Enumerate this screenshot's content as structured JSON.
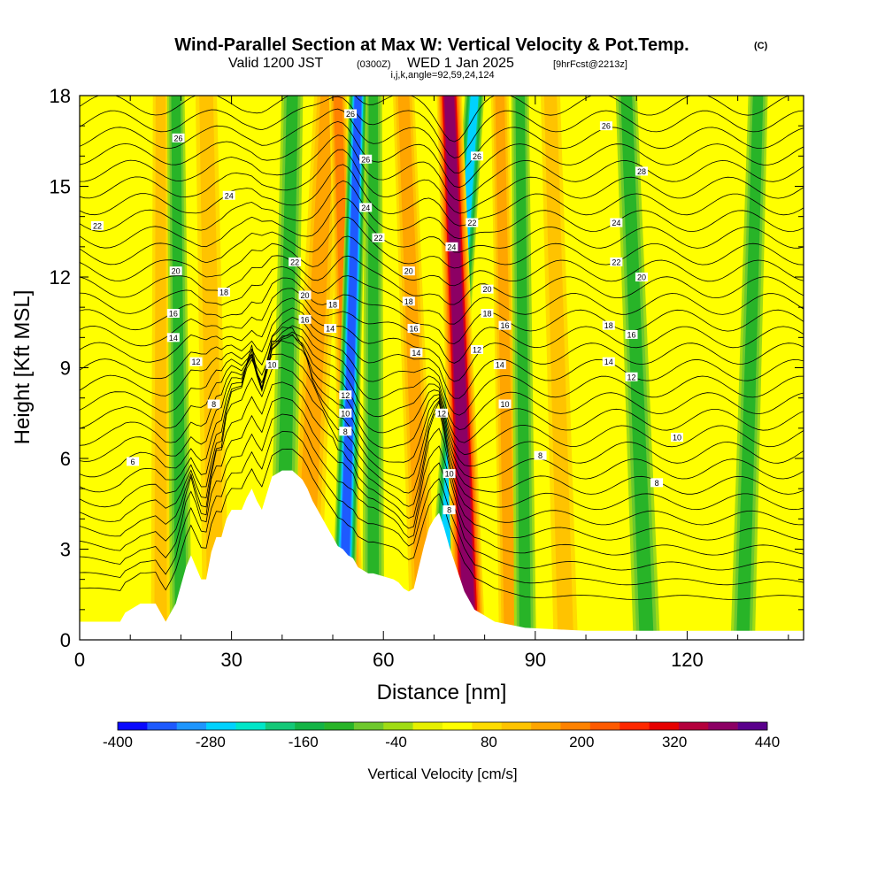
{
  "chart_data": {
    "type": "heatmap",
    "title": "Wind-Parallel Section at Max W: Vertical Velocity & Pot.Temp.",
    "title_mark": "(C)",
    "subtitle_parts": [
      "Valid 1200 JST",
      "(0300Z)",
      "WED 1 Jan 2025",
      "[9hrFcst@2213z]"
    ],
    "subtitle2": "i,j,k,angle=92,59,24,124",
    "xlabel": "Distance [nm]",
    "ylabel": "Height [Kft MSL]",
    "xlim": [
      0,
      143
    ],
    "ylim": [
      0,
      18
    ],
    "x_ticks": [
      0,
      30,
      60,
      90,
      120
    ],
    "y_ticks": [
      0,
      3,
      6,
      9,
      12,
      15,
      18
    ],
    "colorbar": {
      "label": "Vertical Velocity [cm/s]",
      "ticks": [
        -400,
        -280,
        -160,
        -40,
        80,
        200,
        320,
        440
      ],
      "min": -400,
      "max": 440,
      "colors": [
        "#0a0aff",
        "#1e5aff",
        "#1e96ff",
        "#00d2ff",
        "#00e6c8",
        "#14c878",
        "#14b446",
        "#28b428",
        "#6ec82d",
        "#a0dc14",
        "#e6f000",
        "#ffff00",
        "#ffdc00",
        "#ffc300",
        "#ffa500",
        "#ff8200",
        "#ff5a00",
        "#ff2800",
        "#e60000",
        "#b4003c",
        "#8c0064",
        "#5a008c"
      ]
    },
    "terrain_kft": [
      [
        0,
        0.6
      ],
      [
        8,
        0.6
      ],
      [
        9,
        0.9
      ],
      [
        12,
        1.2
      ],
      [
        15,
        1.2
      ],
      [
        16,
        0.9
      ],
      [
        17,
        0.6
      ],
      [
        18,
        0.9
      ],
      [
        19,
        1.2
      ],
      [
        20,
        1.8
      ],
      [
        21,
        2.4
      ],
      [
        22,
        2.8
      ],
      [
        23,
        2.4
      ],
      [
        24,
        2.0
      ],
      [
        25,
        2.0
      ],
      [
        26,
        2.9
      ],
      [
        27,
        3.4
      ],
      [
        28,
        3.4
      ],
      [
        29,
        4.0
      ],
      [
        30,
        4.3
      ],
      [
        32,
        4.3
      ],
      [
        33,
        4.7
      ],
      [
        34,
        5.0
      ],
      [
        35,
        4.6
      ],
      [
        36,
        4.3
      ],
      [
        38,
        5.4
      ],
      [
        40,
        5.6
      ],
      [
        42,
        5.6
      ],
      [
        44,
        5.3
      ],
      [
        45,
        5.0
      ],
      [
        46,
        4.6
      ],
      [
        47,
        4.3
      ],
      [
        48,
        4.0
      ],
      [
        49,
        3.7
      ],
      [
        50,
        3.4
      ],
      [
        51,
        3.1
      ],
      [
        52,
        3.0
      ],
      [
        53,
        2.8
      ],
      [
        54,
        2.7
      ],
      [
        55,
        2.4
      ],
      [
        56,
        2.3
      ],
      [
        57,
        2.2
      ],
      [
        58,
        2.2
      ],
      [
        60,
        2.1
      ],
      [
        62,
        2.0
      ],
      [
        63,
        1.9
      ],
      [
        64,
        1.7
      ],
      [
        65,
        1.6
      ],
      [
        66,
        1.7
      ],
      [
        67,
        2.4
      ],
      [
        68,
        3.1
      ],
      [
        69,
        3.7
      ],
      [
        70,
        4.0
      ],
      [
        71,
        4.2
      ],
      [
        72,
        3.7
      ],
      [
        73,
        3.1
      ],
      [
        74,
        2.6
      ],
      [
        75,
        2.1
      ],
      [
        76,
        1.6
      ],
      [
        77,
        1.3
      ],
      [
        78,
        1.0
      ],
      [
        80,
        0.8
      ],
      [
        82,
        0.6
      ],
      [
        85,
        0.5
      ],
      [
        88,
        0.4
      ],
      [
        100,
        0.3
      ],
      [
        143,
        0.3
      ]
    ],
    "updraft_bands": [
      {
        "x_bottom": 44,
        "x_top": 49,
        "width": 2.8,
        "strength": 120
      },
      {
        "x_bottom": 54,
        "x_top": 51,
        "width": 1.8,
        "strength": 160
      },
      {
        "x_bottom": 77,
        "x_top": 73,
        "width": 2.6,
        "strength": 330
      },
      {
        "x_bottom": 68,
        "x_top": 64,
        "width": 2.2,
        "strength": 120
      },
      {
        "x_bottom": 85,
        "x_top": 83,
        "width": 1.8,
        "strength": 120
      },
      {
        "x_bottom": 96,
        "x_top": 93,
        "width": 2.0,
        "strength": 90
      },
      {
        "x_bottom": 27,
        "x_top": 25,
        "width": 2.2,
        "strength": 80
      },
      {
        "x_bottom": 16,
        "x_top": 16,
        "width": 1.6,
        "strength": 70
      }
    ],
    "downdraft_bands": [
      {
        "x_bottom": 52,
        "x_top": 55,
        "width": 1.9,
        "strength": -330
      },
      {
        "x_bottom": 71,
        "x_top": 78,
        "width": 2.0,
        "strength": -250
      },
      {
        "x_bottom": 40,
        "x_top": 42,
        "width": 2.2,
        "strength": -130
      },
      {
        "x_bottom": 58,
        "x_top": 58,
        "width": 1.8,
        "strength": -120
      },
      {
        "x_bottom": 88,
        "x_top": 87,
        "width": 1.8,
        "strength": -120
      },
      {
        "x_bottom": 112,
        "x_top": 108,
        "width": 2.2,
        "strength": -110
      },
      {
        "x_bottom": 20,
        "x_top": 19,
        "width": 1.8,
        "strength": -120
      },
      {
        "x_bottom": 131,
        "x_top": 134,
        "width": 2.0,
        "strength": -120
      }
    ],
    "theta_contour_labels": [
      {
        "x": 19.5,
        "y": 16.6,
        "text": "26"
      },
      {
        "x": 29.5,
        "y": 14.7,
        "text": "24"
      },
      {
        "x": 3.5,
        "y": 13.7,
        "text": "22"
      },
      {
        "x": 19,
        "y": 12.2,
        "text": "20"
      },
      {
        "x": 28.5,
        "y": 11.5,
        "text": "18"
      },
      {
        "x": 18.5,
        "y": 10.8,
        "text": "16"
      },
      {
        "x": 18.5,
        "y": 10.0,
        "text": "14"
      },
      {
        "x": 23,
        "y": 9.2,
        "text": "12"
      },
      {
        "x": 38,
        "y": 9.1,
        "text": "10"
      },
      {
        "x": 26.5,
        "y": 7.8,
        "text": "8"
      },
      {
        "x": 10.5,
        "y": 5.9,
        "text": "6"
      },
      {
        "x": 53.5,
        "y": 17.4,
        "text": "26"
      },
      {
        "x": 56.5,
        "y": 15.9,
        "text": "26"
      },
      {
        "x": 56.5,
        "y": 14.3,
        "text": "24"
      },
      {
        "x": 59,
        "y": 13.3,
        "text": "22"
      },
      {
        "x": 42.5,
        "y": 12.5,
        "text": "22"
      },
      {
        "x": 44.5,
        "y": 11.4,
        "text": "20"
      },
      {
        "x": 50,
        "y": 11.1,
        "text": "18"
      },
      {
        "x": 44.5,
        "y": 10.6,
        "text": "16"
      },
      {
        "x": 49.5,
        "y": 10.3,
        "text": "14"
      },
      {
        "x": 52.5,
        "y": 8.1,
        "text": "12"
      },
      {
        "x": 52.5,
        "y": 7.5,
        "text": "10"
      },
      {
        "x": 52.5,
        "y": 6.9,
        "text": "8"
      },
      {
        "x": 65,
        "y": 12.2,
        "text": "20"
      },
      {
        "x": 65,
        "y": 11.2,
        "text": "18"
      },
      {
        "x": 66,
        "y": 10.3,
        "text": "16"
      },
      {
        "x": 66.5,
        "y": 9.5,
        "text": "14"
      },
      {
        "x": 78.5,
        "y": 16.0,
        "text": "26"
      },
      {
        "x": 77.5,
        "y": 13.8,
        "text": "22"
      },
      {
        "x": 73.5,
        "y": 13.0,
        "text": "24"
      },
      {
        "x": 80.5,
        "y": 11.6,
        "text": "20"
      },
      {
        "x": 80.5,
        "y": 10.8,
        "text": "18"
      },
      {
        "x": 84,
        "y": 10.4,
        "text": "16"
      },
      {
        "x": 78.5,
        "y": 9.6,
        "text": "12"
      },
      {
        "x": 83,
        "y": 9.1,
        "text": "14"
      },
      {
        "x": 84,
        "y": 7.8,
        "text": "10"
      },
      {
        "x": 71.5,
        "y": 7.5,
        "text": "12"
      },
      {
        "x": 73,
        "y": 5.5,
        "text": "10"
      },
      {
        "x": 73,
        "y": 4.3,
        "text": "8"
      },
      {
        "x": 104,
        "y": 17.0,
        "text": "26"
      },
      {
        "x": 111,
        "y": 15.5,
        "text": "28"
      },
      {
        "x": 106,
        "y": 13.8,
        "text": "24"
      },
      {
        "x": 106,
        "y": 12.5,
        "text": "22"
      },
      {
        "x": 111,
        "y": 12.0,
        "text": "20"
      },
      {
        "x": 104.5,
        "y": 10.4,
        "text": "18"
      },
      {
        "x": 109,
        "y": 10.1,
        "text": "16"
      },
      {
        "x": 104.5,
        "y": 9.2,
        "text": "14"
      },
      {
        "x": 109,
        "y": 8.7,
        "text": "12"
      },
      {
        "x": 91,
        "y": 6.1,
        "text": "8"
      },
      {
        "x": 118,
        "y": 6.7,
        "text": "10"
      },
      {
        "x": 114,
        "y": 5.2,
        "text": "8"
      }
    ]
  }
}
